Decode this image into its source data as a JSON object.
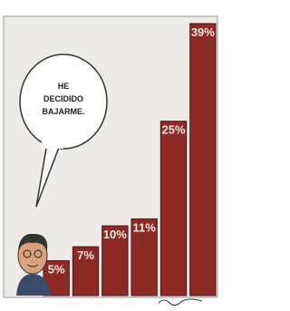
{
  "chart_data": {
    "type": "bar",
    "categories": [
      null,
      null,
      null,
      null,
      null,
      null
    ],
    "values": [
      5,
      7,
      10,
      11,
      25,
      39
    ],
    "value_labels": [
      "5%",
      "7%",
      "10%",
      "11%",
      "25%",
      "39%"
    ],
    "color": "#8e2a25",
    "annotation": [
      "HE",
      "DECIDIDO",
      "BAJARME."
    ]
  }
}
